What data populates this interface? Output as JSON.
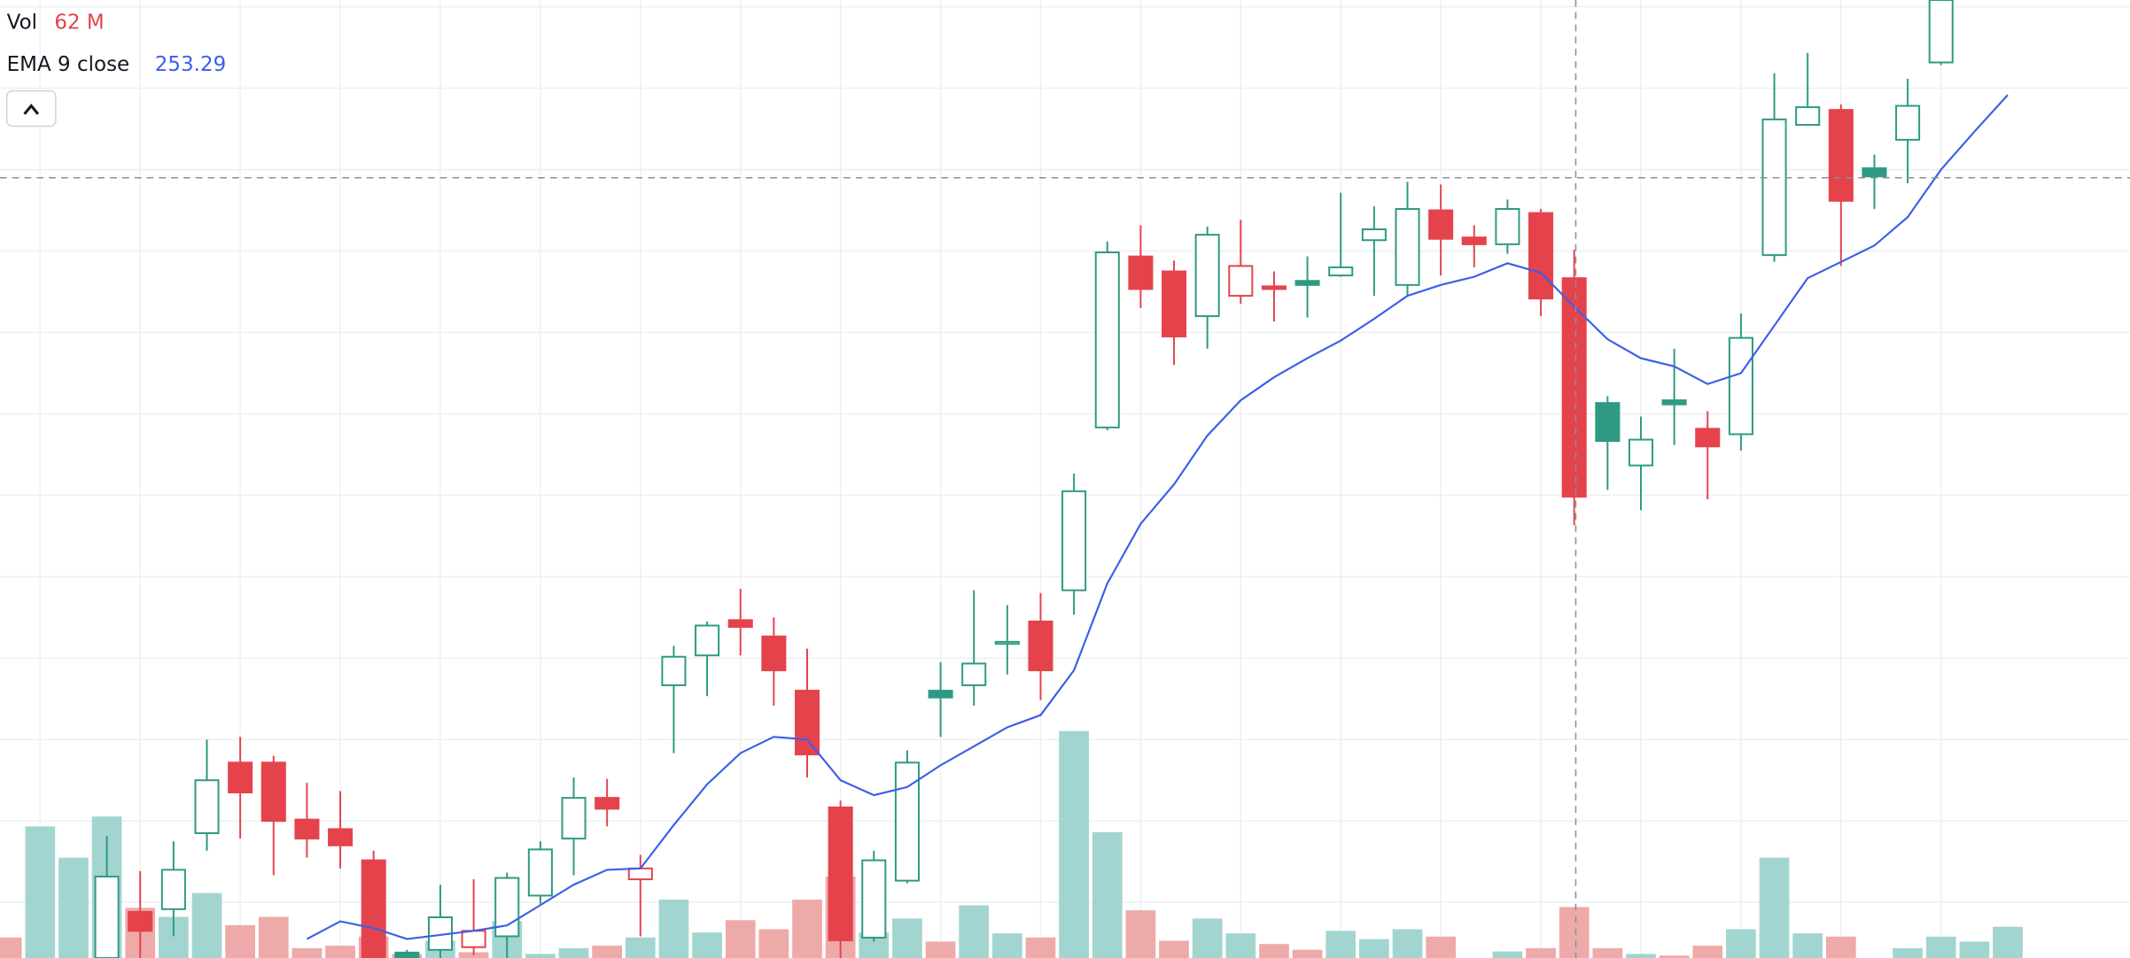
{
  "chart_data": {
    "type": "candlestick",
    "open": [
      null,
      null,
      null,
      0,
      34,
      36,
      92,
      144,
      144,
      102,
      95,
      72,
      4,
      6,
      8,
      16,
      46,
      88,
      118,
      58,
      201,
      223,
      249,
      237,
      197,
      111,
      15,
      57,
      197,
      201,
      232,
      248,
      271,
      391,
      517,
      506,
      473,
      488,
      495,
      499,
      503,
      529,
      496,
      551,
      531,
      526,
      549,
      501,
      409,
      363,
      411,
      390,
      386,
      518,
      614,
      625,
      582,
      603,
      660,
      null,
      null
    ],
    "high": [
      null,
      null,
      null,
      90,
      64,
      86,
      161,
      163,
      149,
      129,
      123,
      79,
      6,
      54,
      58,
      63,
      86,
      133,
      132,
      76,
      230,
      248,
      272,
      251,
      228,
      116,
      79,
      153,
      218,
      271,
      260,
      269,
      357,
      528,
      540,
      514,
      539,
      544,
      506,
      517,
      564,
      554,
      572,
      570,
      540,
      559,
      552,
      522,
      414,
      399,
      449,
      403,
      475,
      652,
      667,
      629,
      592,
      648,
      706,
      null,
      null
    ],
    "low": [
      null,
      null,
      null,
      0,
      0,
      16,
      79,
      88,
      61,
      74,
      66,
      0,
      0,
      0,
      2,
      0,
      40,
      61,
      97,
      16,
      151,
      193,
      223,
      186,
      133,
      0,
      12,
      55,
      163,
      186,
      209,
      190,
      253,
      389,
      479,
      437,
      449,
      482,
      469,
      472,
      502,
      488,
      488,
      503,
      509,
      519,
      473,
      319,
      345,
      330,
      378,
      338,
      374,
      513,
      614,
      510,
      552,
      571,
      658,
      null,
      null
    ],
    "close": [
      null,
      null,
      null,
      60,
      20,
      65,
      131,
      122,
      101,
      88,
      83,
      0,
      0,
      30,
      20,
      59,
      80,
      118,
      110,
      66,
      222,
      245,
      244,
      212,
      150,
      13,
      72,
      144,
      192,
      217,
      233,
      212,
      344,
      520,
      493,
      458,
      533,
      510,
      493,
      496,
      509,
      537,
      552,
      530,
      526,
      552,
      486,
      340,
      381,
      382,
      408,
      377,
      457,
      618,
      627,
      558,
      576,
      628,
      706,
      null,
      null
    ],
    "up_color": "#2e9a83",
    "down_color": "#e5434c",
    "ylim": [
      0,
      706
    ],
    "volume": {
      "name": "Vol",
      "values": [
        25,
        160,
        122,
        172,
        61,
        50,
        79,
        40,
        50,
        12,
        15,
        26,
        5,
        21,
        7,
        45,
        5,
        12,
        15,
        25,
        71,
        31,
        46,
        35,
        71,
        99,
        31,
        48,
        20,
        64,
        30,
        25,
        276,
        153,
        58,
        21,
        48,
        30,
        17,
        10,
        33,
        23,
        35,
        26,
        null,
        8,
        12,
        62,
        12,
        5,
        3,
        15,
        35,
        122,
        30,
        26,
        null,
        12,
        26,
        20,
        38
      ],
      "colors": [
        "#eeaaa9",
        "#a3d5d0",
        "#a3d5d0",
        "#a3d5d0",
        "#eeaaa9",
        "#a3d5d0",
        "#a3d5d0",
        "#eeaaa9",
        "#eeaaa9",
        "#eeaaa9",
        "#eeaaa9",
        "#eeaaa9",
        "#eeaaa9",
        "#a3d5d0",
        "#eeaaa9",
        "#a3d5d0",
        "#a3d5d0",
        "#a3d5d0",
        "#eeaaa9",
        "#a3d5d0",
        "#a3d5d0",
        "#a3d5d0",
        "#eeaaa9",
        "#eeaaa9",
        "#eeaaa9",
        "#eeaaa9",
        "#a3d5d0",
        "#a3d5d0",
        "#eeaaa9",
        "#a3d5d0",
        "#a3d5d0",
        "#eeaaa9",
        "#a3d5d0",
        "#a3d5d0",
        "#eeaaa9",
        "#eeaaa9",
        "#a3d5d0",
        "#a3d5d0",
        "#eeaaa9",
        "#eeaaa9",
        "#a3d5d0",
        "#a3d5d0",
        "#a3d5d0",
        "#eeaaa9",
        "#a3d5d0",
        "#a3d5d0",
        "#eeaaa9",
        "#eeaaa9",
        "#eeaaa9",
        "#a3d5d0",
        "#eeaaa9",
        "#eeaaa9",
        "#a3d5d0",
        "#a3d5d0",
        "#a3d5d0",
        "#eeaaa9",
        "#a3d5d0",
        "#a3d5d0",
        "#a3d5d0",
        "#a3d5d0",
        "#a3d5d0"
      ],
      "ylim": [
        0,
        1165
      ]
    },
    "ema": {
      "name": "EMA 9 close",
      "color": "#3b5ee8",
      "values": [
        null,
        null,
        null,
        null,
        null,
        null,
        null,
        null,
        null,
        14,
        27,
        22,
        14,
        17,
        20,
        24,
        39,
        54,
        65,
        66,
        98,
        128,
        151,
        163,
        161,
        131,
        120,
        126,
        142,
        156,
        170,
        179,
        212,
        276,
        320,
        349,
        385,
        411,
        428,
        442,
        455,
        471,
        488,
        496,
        502,
        512,
        505,
        480,
        456,
        442,
        436,
        423,
        431,
        466,
        501,
        513,
        525,
        546,
        581,
        609,
        636
      ]
    },
    "legend": [
      {
        "name": "Vol",
        "value": "62 M",
        "color": "#e5434c"
      },
      {
        "name": "EMA 9 close",
        "value": "253.29",
        "color": "#3b5ee8"
      }
    ],
    "grid": true
  }
}
